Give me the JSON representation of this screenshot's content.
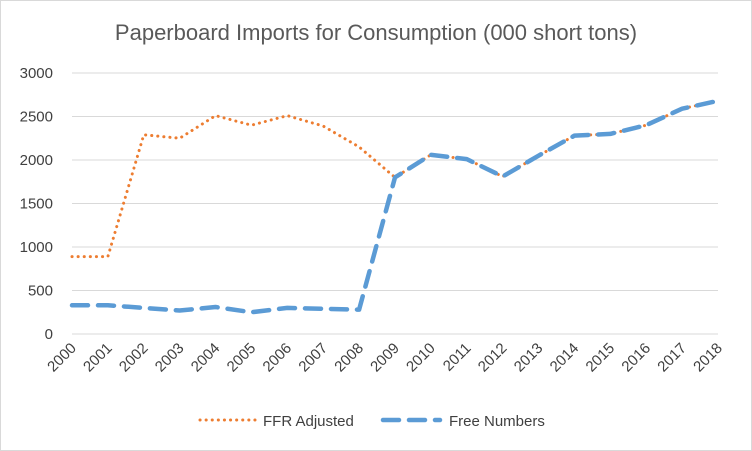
{
  "chart_data": {
    "type": "line",
    "title": "Paperboard Imports for Consumption (000 short tons)",
    "xlabel": "",
    "ylabel": "",
    "categories": [
      "2000",
      "2001",
      "2002",
      "2003",
      "2004",
      "2005",
      "2006",
      "2007",
      "2008",
      "2009",
      "2010",
      "2011",
      "2012",
      "2013",
      "2014",
      "2015",
      "2016",
      "2017",
      "2018"
    ],
    "ylim": [
      0,
      3000
    ],
    "yticks": [
      "0",
      "500",
      "1000",
      "1500",
      "2000",
      "2500",
      "3000"
    ],
    "grid": true,
    "legend_position": "bottom",
    "series": [
      {
        "name": "FFR Adjusted",
        "style": "dotted",
        "color": "#ED7D31",
        "values": [
          890,
          890,
          2290,
          2250,
          2510,
          2400,
          2510,
          2390,
          2150,
          1800,
          2060,
          2010,
          1810,
          2050,
          2280,
          2300,
          2400,
          2590,
          2680
        ]
      },
      {
        "name": "Free Numbers",
        "style": "dashed",
        "color": "#5B9BD5",
        "values": [
          330,
          330,
          300,
          270,
          310,
          250,
          300,
          290,
          280,
          1800,
          2060,
          2010,
          1810,
          2050,
          2280,
          2300,
          2400,
          2590,
          2680
        ]
      }
    ]
  }
}
